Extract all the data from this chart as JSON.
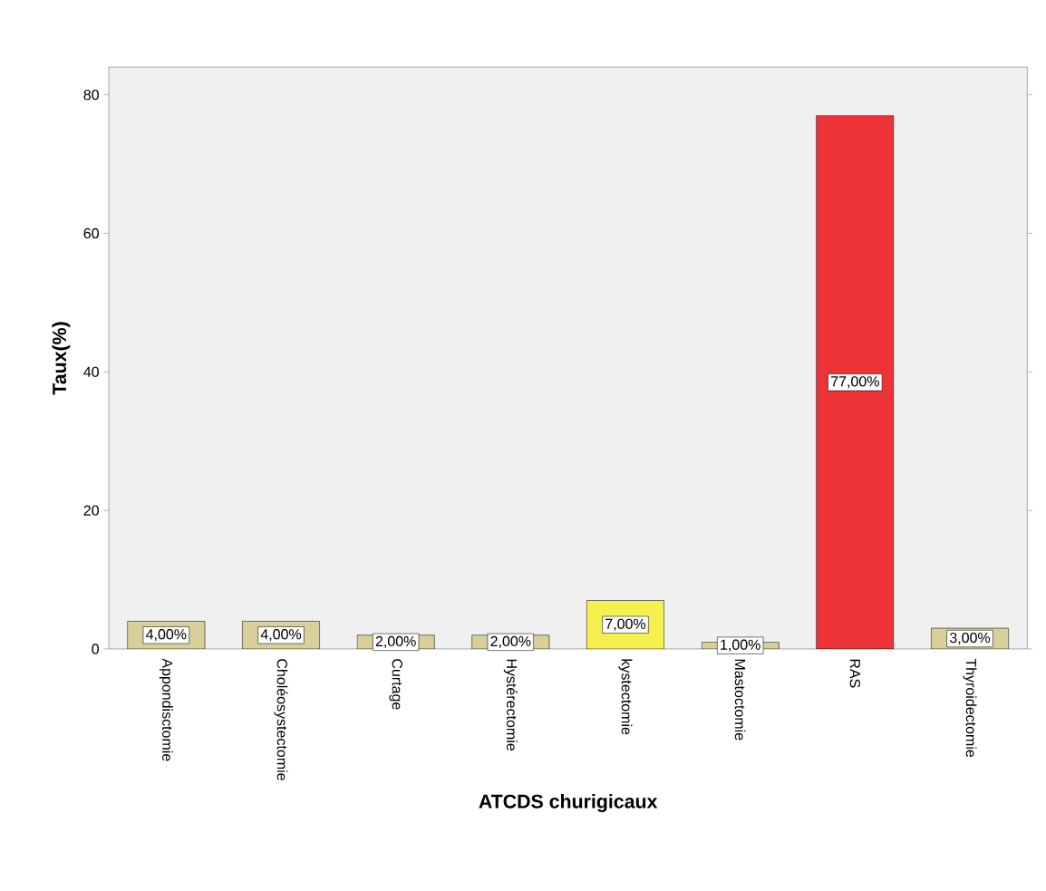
{
  "chart_data": {
    "type": "bar",
    "xlabel": "ATCDS churigicaux",
    "ylabel": "Taux(%)",
    "categories": [
      "Appondisctomie",
      "Choléosystectomie",
      "Curtage",
      "Hystérectomie",
      "kystectomie",
      "Mastoctomie",
      "RAS",
      "Thyroidectomie"
    ],
    "values": [
      4,
      4,
      2,
      2,
      7,
      1,
      77,
      3
    ],
    "colors": [
      "#d8cf9a",
      "#d8cf9a",
      "#d8cf9a",
      "#d8cf9a",
      "#f5f050",
      "#d8cf9a",
      "#ee3338",
      "#d8cf9a"
    ],
    "value_labels": [
      "4,00%",
      "4,00%",
      "2,00%",
      "2,00%",
      "7,00%",
      "1,00%",
      "77,00%",
      "3,00%"
    ],
    "ylim": [
      0,
      84
    ],
    "yticks": [
      0,
      20,
      40,
      60,
      80
    ],
    "grid": false
  }
}
